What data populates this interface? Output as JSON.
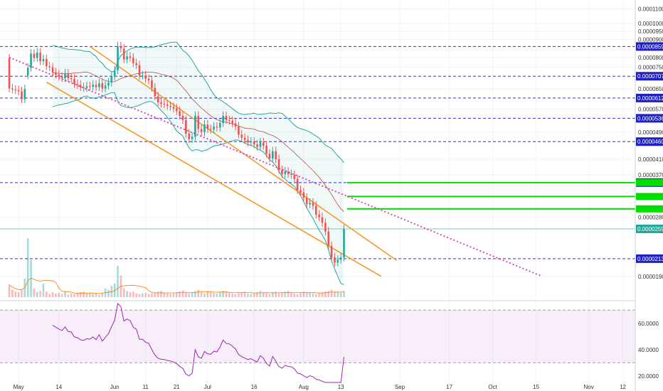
{
  "chart_data": [
    {
      "type": "candlestick",
      "title": "",
      "y_axis": {
        "scale": "log",
        "ticks": [
          "0.00011000",
          "0.00010000",
          "0.00009500",
          "0.00009000",
          "0.00008000",
          "0.00007500",
          "0.00006500",
          "0.00005700",
          "0.00004900",
          "0.00004100",
          "0.00003700",
          "0.00002800",
          "0.00001900"
        ],
        "ylim": [
          1.65e-05,
          0.000115
        ]
      },
      "x_axis": {
        "ticks": [
          "May",
          "14",
          "Jun",
          "11",
          "21",
          "Jul",
          "16",
          "Aug",
          "13",
          "Sep",
          "17",
          "Oct",
          "15",
          "Nov",
          "12"
        ],
        "xlim": [
          "2018-04-25",
          "2018-11-16"
        ]
      },
      "levels": [
        {
          "label": "0.00008594",
          "value": 8.594e-05,
          "style": "dashed",
          "color": "#3030d0"
        },
        {
          "label": "0.00007070",
          "value": 7.07e-05,
          "style": "dashed",
          "color": "#3030d0"
        },
        {
          "label": "0.00006127",
          "value": 6.127e-05,
          "style": "dashed",
          "color": "#3030d0"
        },
        {
          "label": "0.00005364",
          "value": 5.364e-05,
          "style": "dashed",
          "color": "#3030d0"
        },
        {
          "label": "0.00004602",
          "value": 4.602e-05,
          "style": "dashed",
          "color": "#3030d0"
        },
        {
          "label": "0.00003517",
          "value": 3.517e-05,
          "style": "dashed",
          "color": "#3030d0"
        },
        {
          "label": "0.00002134",
          "value": 2.134e-05,
          "style": "dashed",
          "color": "#3030d0"
        }
      ],
      "targets": [
        {
          "label": "",
          "value": 3.517e-05,
          "color": "#00dd00"
        },
        {
          "label": "",
          "value": 3.21e-05,
          "color": "#00dd00"
        },
        {
          "label": "",
          "value": 2.96e-05,
          "color": "#00dd00"
        }
      ],
      "last_price": {
        "label": "0.00002595",
        "value": 2.595e-05,
        "color": "#26a69a"
      },
      "series": [
        {
          "kind": "candles",
          "o": [
            7.95e-05,
            6.52e-05,
            6.48e-05,
            6.45e-05,
            6.4e-05,
            6.08e-05,
            7.11e-05,
            7.47e-05,
            8.2e-05,
            7.97e-05,
            8.25e-05,
            7.8e-05,
            7.92e-05,
            7.55e-05,
            7.5e-05,
            7.25e-05,
            7.15e-05,
            7.05e-05,
            6.98e-05,
            7.2e-05,
            6.98e-05,
            6.95e-05,
            6.72e-05,
            6.68e-05,
            6.58e-05,
            6.55e-05,
            6.62e-05,
            6.6e-05,
            6.68e-05,
            6.58e-05,
            6.75e-05,
            6.52e-05,
            6.65e-05,
            6.78e-05,
            7.05e-05,
            7.35e-05,
            8.6e-05,
            8.48e-05,
            7.9e-05,
            8.05e-05,
            7.98e-05,
            7.7e-05,
            7.6e-05,
            7.1e-05,
            7.1e-05,
            6.95e-05,
            6.88e-05,
            6.55e-05,
            6.2e-05,
            5.96e-05,
            5.9e-05,
            5.88e-05,
            5.82e-05,
            5.78e-05,
            5.72e-05,
            5.62e-05,
            5.45e-05,
            5.3e-05,
            4.85e-05,
            4.68e-05,
            4.75e-05,
            5.45e-05,
            5e-05,
            4.9e-05,
            5.15e-05,
            5e-05,
            4.98e-05,
            5.08e-05,
            5.05e-05,
            5.2e-05,
            5.45e-05,
            5.3e-05,
            5.28e-05,
            5.19e-05,
            5.08e-05,
            4.82e-05,
            4.72e-05,
            4.65e-05,
            4.58e-05,
            4.6e-05,
            4.52e-05,
            4.45e-05,
            4.58e-05,
            4.48e-05,
            4.25e-05,
            4.12e-05,
            4.32e-05,
            4.1e-05,
            3.82e-05,
            3.72e-05,
            3.78e-05,
            3.72e-05,
            3.7e-05,
            3.6e-05,
            3.35e-05,
            3.3e-05,
            3.18e-05,
            3.05e-05,
            3.08e-05,
            3.02e-05,
            2.85e-05,
            2.8e-05,
            2.7e-05,
            2.55e-05,
            2.32e-05,
            2.15e-05,
            2.08e-05,
            2.12e-05,
            2.15e-05
          ],
          "c": [
            6.52e-05,
            6.48e-05,
            6.45e-05,
            6.4e-05,
            6.08e-05,
            6.5e-05,
            7.47e-05,
            8.2e-05,
            7.97e-05,
            8.25e-05,
            7.8e-05,
            7.92e-05,
            7.55e-05,
            7.5e-05,
            7.25e-05,
            7.15e-05,
            7.05e-05,
            6.98e-05,
            7.2e-05,
            6.98e-05,
            6.95e-05,
            6.72e-05,
            6.68e-05,
            6.58e-05,
            6.55e-05,
            6.62e-05,
            6.6e-05,
            6.68e-05,
            6.58e-05,
            6.75e-05,
            6.52e-05,
            6.65e-05,
            6.78e-05,
            7.05e-05,
            7.35e-05,
            8.6e-05,
            8.48e-05,
            7.9e-05,
            8.05e-05,
            7.98e-05,
            7.7e-05,
            7.6e-05,
            7.1e-05,
            7.1e-05,
            6.95e-05,
            6.88e-05,
            6.55e-05,
            6.2e-05,
            5.96e-05,
            5.9e-05,
            5.88e-05,
            5.82e-05,
            5.78e-05,
            5.72e-05,
            5.62e-05,
            5.45e-05,
            5.3e-05,
            4.85e-05,
            4.68e-05,
            4.75e-05,
            5.45e-05,
            5e-05,
            4.9e-05,
            5.15e-05,
            5e-05,
            4.98e-05,
            5.08e-05,
            5.05e-05,
            5.2e-05,
            5.45e-05,
            5.3e-05,
            5.28e-05,
            5.19e-05,
            5.08e-05,
            4.82e-05,
            4.72e-05,
            4.65e-05,
            4.58e-05,
            4.6e-05,
            4.52e-05,
            4.45e-05,
            4.58e-05,
            4.48e-05,
            4.25e-05,
            4.12e-05,
            4.32e-05,
            4.1e-05,
            3.82e-05,
            3.72e-05,
            3.78e-05,
            3.72e-05,
            3.7e-05,
            3.6e-05,
            3.35e-05,
            3.3e-05,
            3.18e-05,
            3.05e-05,
            3.08e-05,
            3.02e-05,
            2.85e-05,
            2.8e-05,
            2.7e-05,
            2.55e-05,
            2.32e-05,
            2.15e-05,
            2.08e-05,
            2.12e-05,
            2.15e-05,
            2.59e-05
          ]
        },
        {
          "kind": "volume",
          "values": [
            20,
            12,
            9,
            8,
            12,
            30,
            95,
            60,
            14,
            8,
            10,
            22,
            9,
            5,
            8,
            6,
            7,
            5,
            9,
            4,
            6,
            5,
            7,
            8,
            9,
            6,
            7,
            5,
            6,
            4,
            7,
            14,
            12,
            18,
            22,
            50,
            35,
            14,
            10,
            8,
            9,
            6,
            5,
            6,
            7,
            5,
            6,
            8,
            9,
            10,
            7,
            6,
            5,
            6,
            8,
            9,
            11,
            7,
            6,
            8,
            10,
            12,
            8,
            6,
            9,
            8,
            7,
            6,
            8,
            10,
            9,
            7,
            6,
            5,
            7,
            8,
            9,
            6,
            5,
            6,
            8,
            10,
            7,
            6,
            5,
            8,
            9,
            6,
            7,
            9,
            10,
            8,
            6,
            5,
            7,
            9,
            8,
            7,
            6,
            5,
            7,
            8,
            9,
            10,
            12,
            9,
            8,
            7,
            10
          ]
        },
        {
          "kind": "rsi",
          "ticks": [
            "60.0000",
            "40.0000",
            "20.0000"
          ],
          "bands": [
            70,
            30
          ],
          "ylim": [
            15,
            75
          ]
        }
      ]
    }
  ]
}
